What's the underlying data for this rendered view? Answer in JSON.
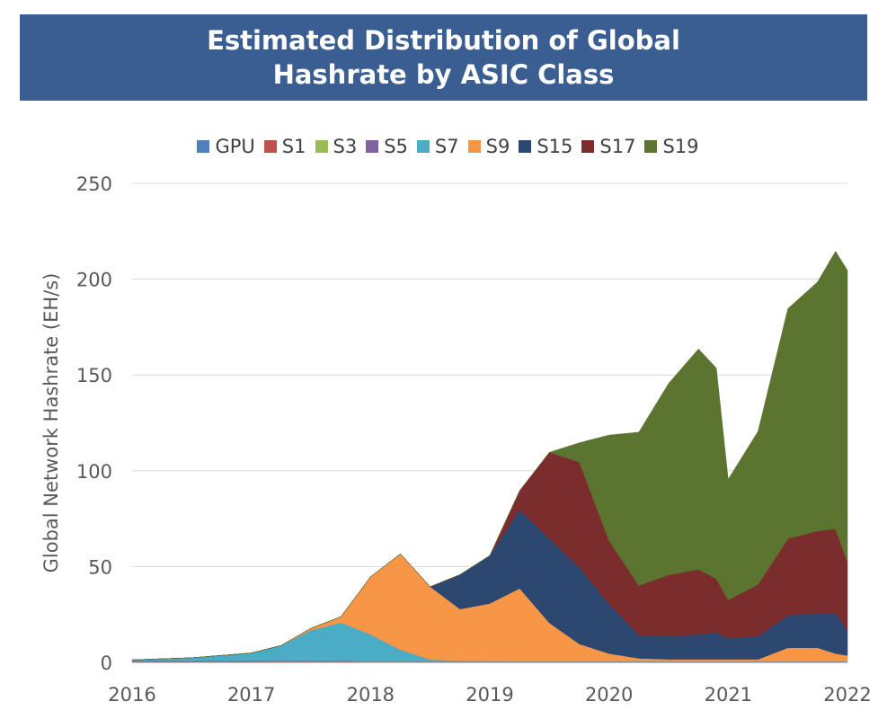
{
  "chart_data": {
    "type": "area",
    "stacked": true,
    "title": "Estimated Distribution of Global Hashrate by ASIC Class",
    "ylabel": "Global Network Hashrate (EH/s)",
    "xlabel": "",
    "ylim": [
      0,
      250
    ],
    "yticks": [
      0,
      50,
      100,
      150,
      200,
      250
    ],
    "xlim": [
      2016,
      2022
    ],
    "xticks": [
      2016,
      2017,
      2018,
      2019,
      2020,
      2021,
      2022
    ],
    "grid": "horizontal",
    "legend_position": "top",
    "x": [
      2016.0,
      2016.5,
      2017.0,
      2017.25,
      2017.5,
      2017.75,
      2018.0,
      2018.25,
      2018.5,
      2018.75,
      2019.0,
      2019.25,
      2019.5,
      2019.75,
      2020.0,
      2020.25,
      2020.5,
      2020.75,
      2020.9,
      2021.0,
      2021.25,
      2021.5,
      2021.75,
      2021.9,
      2022.0
    ],
    "series": [
      {
        "name": "GPU",
        "color": "#4f81bd",
        "values": [
          0.3,
          0.3,
          0.3,
          0.2,
          0.2,
          0.2,
          0.1,
          0.1,
          0.1,
          0.1,
          0.1,
          0.1,
          0.1,
          0.1,
          0.1,
          0.1,
          0.1,
          0.1,
          0.1,
          0.1,
          0.1,
          0.1,
          0.1,
          0.1,
          0.1
        ]
      },
      {
        "name": "S1",
        "color": "#c0504d",
        "values": [
          0.2,
          0.2,
          0.2,
          0.2,
          0.1,
          0.1,
          0.1,
          0.1,
          0.1,
          0.1,
          0.1,
          0.1,
          0.1,
          0.1,
          0.1,
          0.1,
          0.1,
          0.1,
          0.1,
          0.1,
          0.1,
          0.1,
          0.1,
          0.1,
          0.1
        ]
      },
      {
        "name": "S3",
        "color": "#9bbb59",
        "values": [
          0.1,
          0.1,
          0.1,
          0.1,
          0.1,
          0.1,
          0.1,
          0.1,
          0.1,
          0.1,
          0.1,
          0.1,
          0.1,
          0.1,
          0.1,
          0.1,
          0.1,
          0.1,
          0.1,
          0.1,
          0.1,
          0.1,
          0.1,
          0.1,
          0.1
        ]
      },
      {
        "name": "S5",
        "color": "#8064a2",
        "values": [
          0.2,
          0.2,
          0.3,
          0.3,
          0.4,
          0.4,
          0.3,
          0.3,
          0.2,
          0.2,
          0.2,
          0.2,
          0.2,
          0.2,
          0.2,
          0.2,
          0.2,
          0.2,
          0.2,
          0.2,
          0.2,
          0.2,
          0.2,
          0.2,
          0.2
        ]
      },
      {
        "name": "S7",
        "color": "#4bacc6",
        "values": [
          0.5,
          1.6,
          4.0,
          8.0,
          16.0,
          20.0,
          14.0,
          6.0,
          1.0,
          0.3,
          0.2,
          0.1,
          0.1,
          0.1,
          0.1,
          0.1,
          0.1,
          0.1,
          0.1,
          0.1,
          0.1,
          0.1,
          0.1,
          0.1,
          0.1
        ]
      },
      {
        "name": "S9",
        "color": "#f79646",
        "values": [
          0.0,
          0.0,
          0.0,
          0.0,
          1.0,
          3.0,
          30.0,
          50.0,
          38.0,
          27.0,
          30.0,
          38.0,
          20.0,
          9.0,
          4.0,
          1.5,
          1.0,
          1.0,
          1.0,
          1.0,
          1.0,
          7.0,
          7.0,
          4.0,
          3.0
        ]
      },
      {
        "name": "S15",
        "color": "#2c4770",
        "values": [
          0.0,
          0.0,
          0.0,
          0.0,
          0.0,
          0.0,
          0.0,
          0.0,
          0.0,
          18.0,
          25.0,
          41.0,
          44.0,
          40.0,
          26.0,
          12.0,
          12.0,
          13.0,
          14.0,
          11.0,
          12.0,
          17.0,
          18.0,
          21.0,
          13.0
        ]
      },
      {
        "name": "S17",
        "color": "#7b2c2c",
        "values": [
          0.0,
          0.0,
          0.0,
          0.0,
          0.0,
          0.0,
          0.0,
          0.0,
          0.0,
          0.0,
          0.0,
          10.0,
          45.0,
          55.0,
          33.0,
          26.0,
          32.0,
          34.0,
          28.0,
          20.0,
          27.0,
          40.0,
          43.0,
          44.0,
          36.0
        ]
      },
      {
        "name": "S19",
        "color": "#5b742f",
        "values": [
          0.0,
          0.0,
          0.0,
          0.0,
          0.0,
          0.0,
          0.0,
          0.0,
          0.0,
          0.0,
          0.0,
          0.0,
          0.0,
          10.0,
          55.0,
          80.0,
          100.0,
          115.0,
          110.0,
          63.0,
          80.0,
          120.0,
          130.0,
          145.0,
          152.0
        ]
      }
    ]
  }
}
